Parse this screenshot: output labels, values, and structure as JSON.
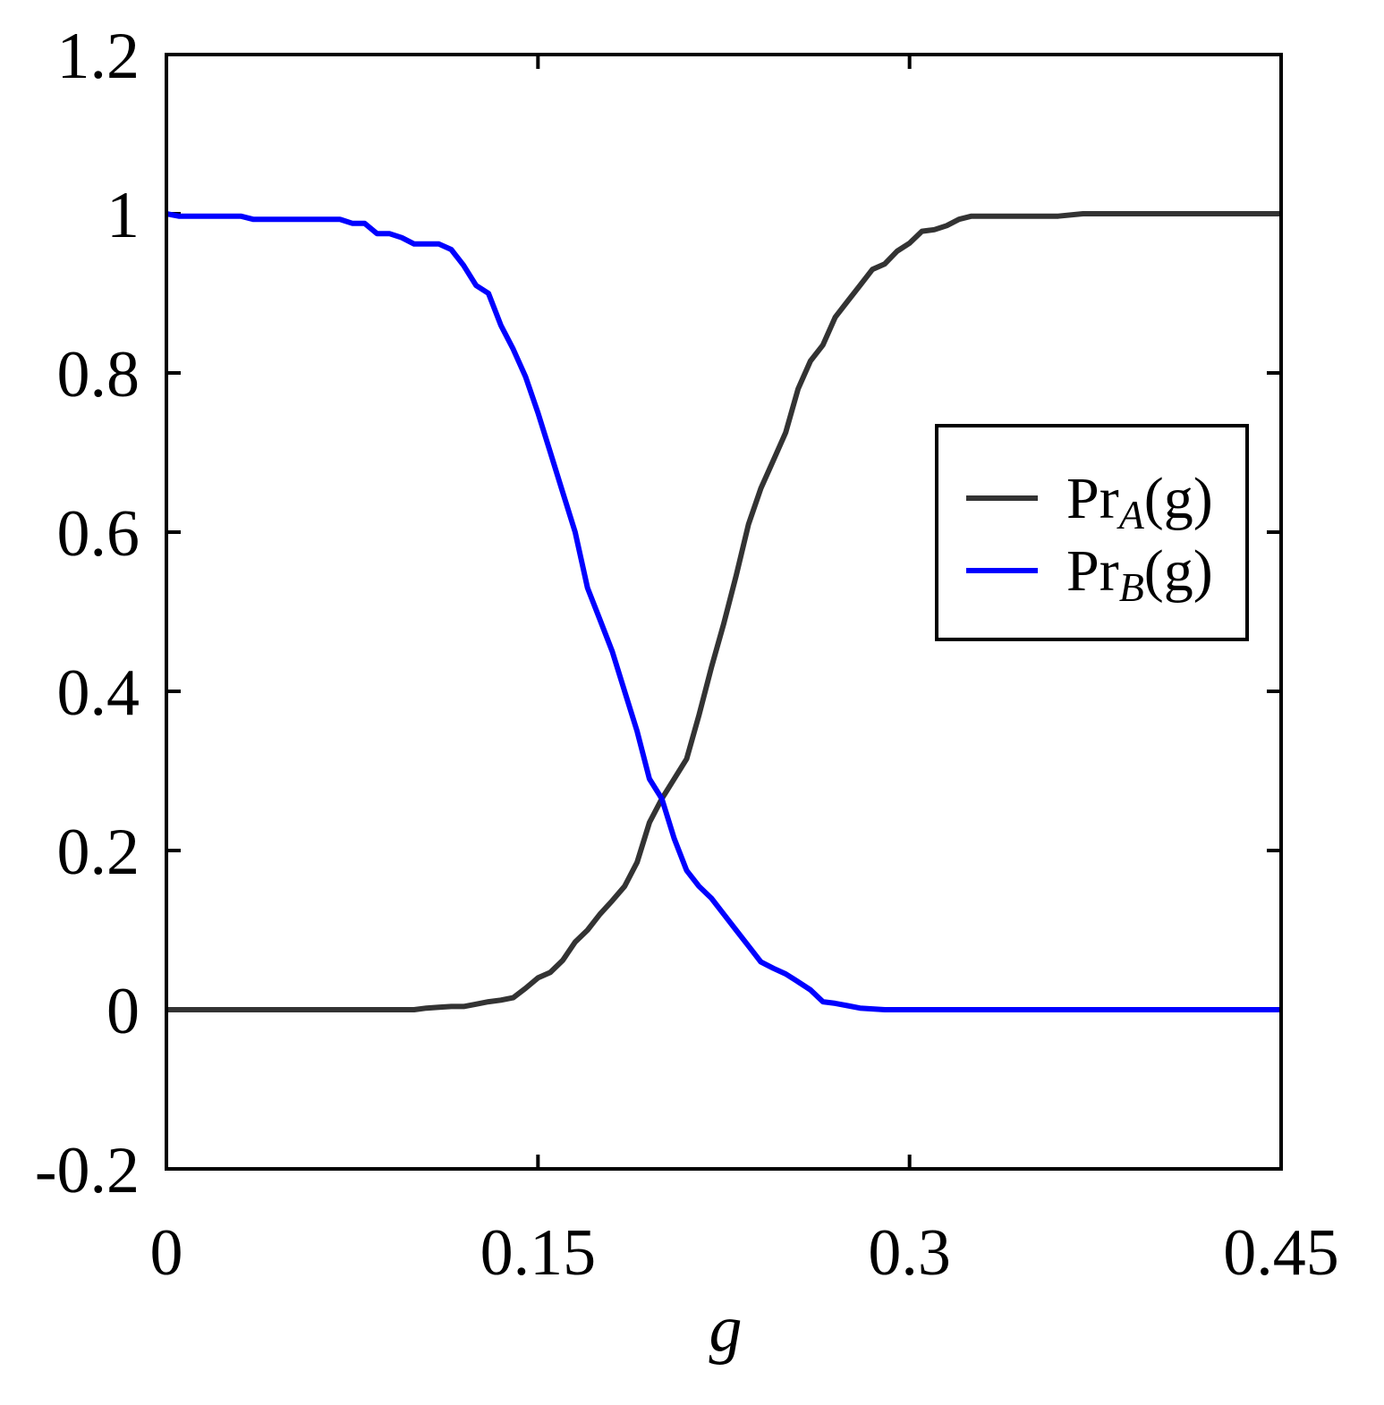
{
  "chart_data": {
    "type": "line",
    "xlabel": "g",
    "ylabel": "",
    "xlim": [
      0,
      0.45
    ],
    "ylim": [
      -0.2,
      1.2
    ],
    "xticks": [
      0,
      0.15,
      0.3,
      0.45
    ],
    "xtick_labels": [
      "0",
      "0.15",
      "0.3",
      "0.45"
    ],
    "yticks": [
      -0.2,
      0,
      0.2,
      0.4,
      0.6,
      0.8,
      1,
      1.2
    ],
    "ytick_labels": [
      "-0.2",
      "0",
      "0.2",
      "0.4",
      "0.6",
      "0.8",
      "1",
      "1.2"
    ],
    "grid": false,
    "legend_position": "right",
    "series": [
      {
        "name": "Pr_A(g)",
        "legend_main": "Pr",
        "legend_sub": "A",
        "legend_arg": "(g)",
        "color": "#333333",
        "x": [
          0,
          0.02,
          0.04,
          0.06,
          0.08,
          0.1,
          0.105,
          0.11,
          0.115,
          0.12,
          0.125,
          0.13,
          0.135,
          0.14,
          0.145,
          0.15,
          0.155,
          0.16,
          0.165,
          0.17,
          0.175,
          0.18,
          0.185,
          0.19,
          0.195,
          0.2,
          0.205,
          0.21,
          0.215,
          0.22,
          0.225,
          0.23,
          0.235,
          0.24,
          0.245,
          0.25,
          0.255,
          0.26,
          0.265,
          0.27,
          0.275,
          0.28,
          0.285,
          0.29,
          0.295,
          0.3,
          0.305,
          0.31,
          0.315,
          0.32,
          0.325,
          0.33,
          0.34,
          0.35,
          0.36,
          0.37,
          0.38,
          0.4,
          0.42,
          0.45
        ],
        "y": [
          0,
          0,
          0,
          0,
          0,
          0,
          0.002,
          0.003,
          0.004,
          0.004,
          0.007,
          0.01,
          0.012,
          0.015,
          0.027,
          0.04,
          0.047,
          0.062,
          0.085,
          0.1,
          0.12,
          0.137,
          0.155,
          0.185,
          0.235,
          0.265,
          0.29,
          0.315,
          0.37,
          0.43,
          0.485,
          0.545,
          0.61,
          0.655,
          0.69,
          0.725,
          0.78,
          0.815,
          0.835,
          0.87,
          0.89,
          0.91,
          0.93,
          0.937,
          0.953,
          0.963,
          0.978,
          0.98,
          0.985,
          0.993,
          0.997,
          0.997,
          0.997,
          0.997,
          0.997,
          1,
          1,
          1,
          1,
          1
        ]
      },
      {
        "name": "Pr_B(g)",
        "legend_main": "Pr",
        "legend_sub": "B",
        "legend_arg": "(g)",
        "color": "#0000ff",
        "x": [
          0,
          0.005,
          0.01,
          0.02,
          0.03,
          0.035,
          0.04,
          0.05,
          0.06,
          0.07,
          0.075,
          0.08,
          0.085,
          0.09,
          0.095,
          0.1,
          0.105,
          0.11,
          0.115,
          0.12,
          0.125,
          0.13,
          0.135,
          0.14,
          0.145,
          0.15,
          0.155,
          0.16,
          0.165,
          0.17,
          0.175,
          0.18,
          0.185,
          0.19,
          0.195,
          0.2,
          0.205,
          0.21,
          0.215,
          0.22,
          0.225,
          0.23,
          0.235,
          0.24,
          0.245,
          0.25,
          0.255,
          0.26,
          0.265,
          0.27,
          0.275,
          0.28,
          0.285,
          0.29,
          0.3,
          0.35,
          0.4,
          0.45
        ],
        "y": [
          1,
          0.997,
          0.997,
          0.997,
          0.997,
          0.993,
          0.993,
          0.993,
          0.993,
          0.993,
          0.988,
          0.988,
          0.975,
          0.975,
          0.97,
          0.962,
          0.962,
          0.962,
          0.955,
          0.935,
          0.91,
          0.9,
          0.86,
          0.83,
          0.795,
          0.75,
          0.7,
          0.65,
          0.6,
          0.53,
          0.49,
          0.45,
          0.4,
          0.35,
          0.29,
          0.265,
          0.215,
          0.175,
          0.155,
          0.14,
          0.12,
          0.1,
          0.08,
          0.06,
          0.052,
          0.045,
          0.035,
          0.025,
          0.01,
          0.008,
          0.005,
          0.002,
          0.001,
          0,
          0,
          0,
          0,
          0
        ]
      }
    ]
  }
}
